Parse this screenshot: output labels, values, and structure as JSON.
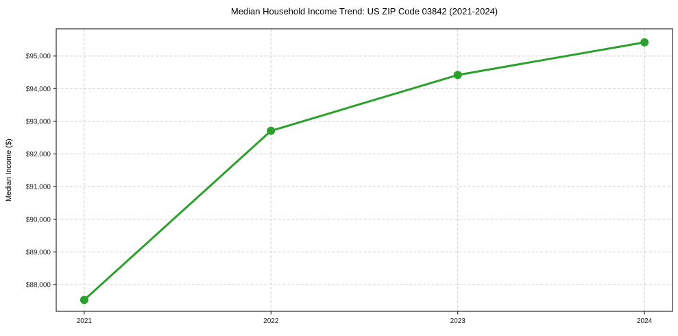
{
  "chart_data": {
    "type": "line",
    "title": "Median Household Income Trend: US ZIP Code 03842 (2021-2024)",
    "xlabel": "",
    "ylabel": "Median Income ($)",
    "x": [
      2021,
      2022,
      2023,
      2024
    ],
    "series": [
      {
        "name": "Median Household Income",
        "values": [
          87530,
          92710,
          94420,
          95420
        ],
        "color": "#2ca02c",
        "marker": "circle",
        "line_width": 3,
        "marker_radius": 6
      }
    ],
    "xlim": [
      2020.85,
      2024.15
    ],
    "ylim": [
      87180,
      95835
    ],
    "xtick_values": [
      2021,
      2022,
      2023,
      2024
    ],
    "xtick_labels": [
      "2021",
      "2022",
      "2023",
      "2024"
    ],
    "ytick_values": [
      88000,
      89000,
      90000,
      91000,
      92000,
      93000,
      94000,
      95000
    ],
    "ytick_labels": [
      "$88,000",
      "$89,000",
      "$90,000",
      "$91,000",
      "$92,000",
      "$93,000",
      "$94,000",
      "$95,000"
    ],
    "grid": true,
    "grid_style": "dashed",
    "legend": false,
    "colors": {
      "line": "#2ca02c",
      "grid": "#cccccc",
      "spine": "#000000",
      "text": "#1a1a1a",
      "background": "#ffffff"
    }
  }
}
